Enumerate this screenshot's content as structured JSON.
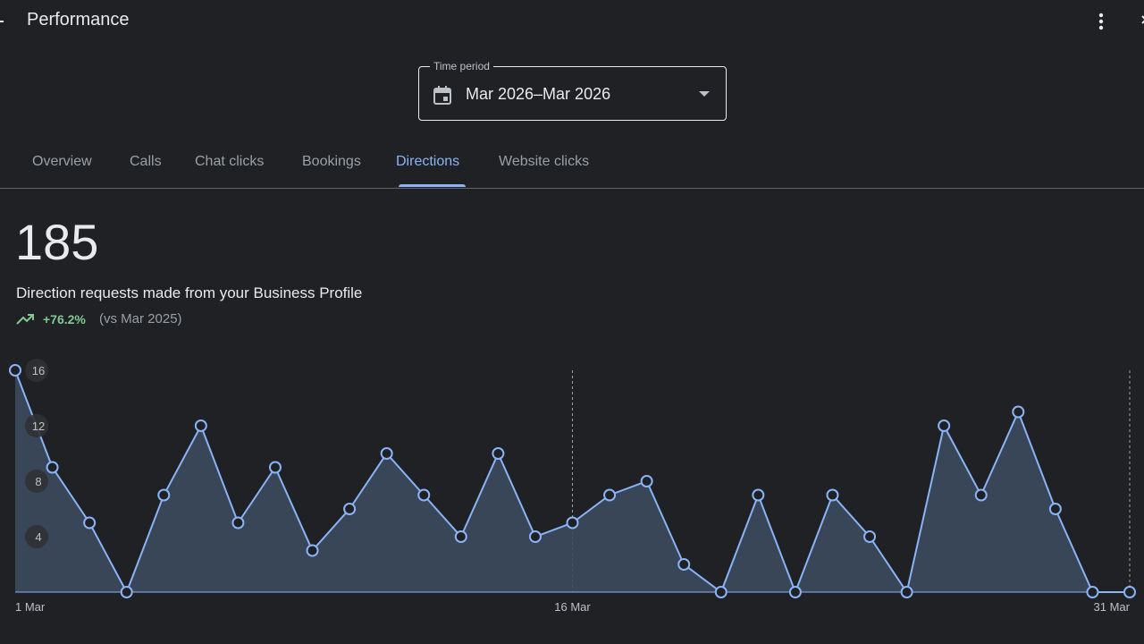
{
  "header": {
    "title": "Performance",
    "icons": [
      "back-arrow-icon",
      "more-vert-icon",
      "close-icon"
    ]
  },
  "time_period": {
    "label": "Time period",
    "value": "Mar 2026–Mar 2026",
    "icon": "calendar-icon"
  },
  "tabs": [
    {
      "label": "Overview",
      "active": false
    },
    {
      "label": "Calls",
      "active": false
    },
    {
      "label": "Chat clicks",
      "active": false
    },
    {
      "label": "Bookings",
      "active": false
    },
    {
      "label": "Directions",
      "active": true
    },
    {
      "label": "Website clicks",
      "active": false
    }
  ],
  "metric": {
    "value": "185",
    "description": "Direction requests made from your Business Profile",
    "change": "+76.2%",
    "comparison": "(vs Mar 2025)"
  },
  "colors": {
    "background": "#202124",
    "accent": "#8ab4f8",
    "positive": "#81c995",
    "series_line": "#8ab4f8",
    "series_fill": "#3b4a5e"
  },
  "chart_data": {
    "type": "area",
    "x": [
      "1 Mar",
      "2 Mar",
      "3 Mar",
      "4 Mar",
      "5 Mar",
      "6 Mar",
      "7 Mar",
      "8 Mar",
      "9 Mar",
      "10 Mar",
      "11 Mar",
      "12 Mar",
      "13 Mar",
      "14 Mar",
      "15 Mar",
      "16 Mar",
      "17 Mar",
      "18 Mar",
      "19 Mar",
      "20 Mar",
      "21 Mar",
      "22 Mar",
      "23 Mar",
      "24 Mar",
      "25 Mar",
      "26 Mar",
      "27 Mar",
      "28 Mar",
      "29 Mar",
      "30 Mar",
      "31 Mar"
    ],
    "values": [
      16,
      9,
      5,
      0,
      7,
      12,
      5,
      9,
      3,
      6,
      10,
      7,
      4,
      10,
      4,
      5,
      7,
      8,
      2,
      0,
      7,
      0,
      7,
      4,
      0,
      12,
      7,
      13,
      6,
      0,
      0
    ],
    "x_tick_labels": [
      "1 Mar",
      "16 Mar",
      "31 Mar"
    ],
    "y_ticks": [
      4,
      8,
      12,
      16
    ],
    "ylim": [
      0,
      16
    ],
    "grid": false,
    "reference_lines": [
      "16 Mar",
      "31 Mar"
    ]
  }
}
